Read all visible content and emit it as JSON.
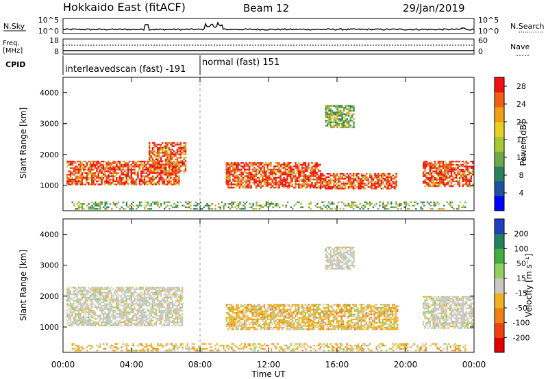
{
  "header": {
    "station": "Hokkaido East (fitACF)",
    "beam": "Beam 12",
    "date": "29/Jan/2019"
  },
  "noise_panel": {
    "left_label": "N.Sky",
    "right_label": "N.Search",
    "ticks": [
      "10^5",
      "10^0"
    ]
  },
  "freq_panel": {
    "left_label_line1": "Freq.",
    "left_label_line2": "[MHz]",
    "left_ticks": [
      "18",
      "8"
    ],
    "right_label": "Nave",
    "right_ticks": [
      "60",
      "0"
    ]
  },
  "cpid_panel": {
    "label": "CPID",
    "segments": [
      {
        "name": "interleavedscan (fast) -191",
        "start_hour": 0,
        "end_hour": 8
      },
      {
        "name": "normal (fast) 151",
        "start_hour": 8,
        "end_hour": 24
      }
    ]
  },
  "time_axis": {
    "label": "Time UT",
    "ticks": [
      "00:00",
      "04:00",
      "08:00",
      "12:00",
      "16:00",
      "20:00",
      "00:00"
    ],
    "range_hours": [
      0,
      24
    ]
  },
  "chart_data": [
    {
      "type": "heatmap",
      "name": "power",
      "ylabel": "Slant Range [km]",
      "yticks": [
        "1000",
        "2000",
        "3000",
        "4000"
      ],
      "ylim": [
        180,
        4500
      ],
      "colorbar": {
        "label": "Power [dB]",
        "ticks": [
          "4",
          "8",
          "12",
          "16",
          "20",
          "24",
          "28"
        ],
        "range": [
          0,
          30
        ],
        "colors": [
          "#0000ff",
          "#1e50a0",
          "#2a8060",
          "#6aaa4a",
          "#a8c832",
          "#e8d020",
          "#f0a010",
          "#f06010",
          "#f01010"
        ]
      },
      "scatter_regions": [
        {
          "t": [
            0.2,
            6.8
          ],
          "r": [
            1050,
            1800
          ],
          "value": "high"
        },
        {
          "t": [
            5.0,
            7.2
          ],
          "r": [
            1400,
            2400
          ],
          "value": "high"
        },
        {
          "t": [
            9.5,
            15.0
          ],
          "r": [
            900,
            1750
          ],
          "value": "high"
        },
        {
          "t": [
            15.0,
            19.5
          ],
          "r": [
            900,
            1400
          ],
          "value": "high"
        },
        {
          "t": [
            21.0,
            23.9
          ],
          "r": [
            950,
            1800
          ],
          "value": "high"
        },
        {
          "t": [
            15.3,
            17.0
          ],
          "r": [
            2900,
            3600
          ],
          "value": "mid"
        },
        {
          "t": [
            0.5,
            23.5
          ],
          "r": [
            220,
            480
          ],
          "value": "mid"
        }
      ]
    },
    {
      "type": "heatmap",
      "name": "velocity",
      "ylabel": "Slant Range [km]",
      "yticks": [
        "1000",
        "2000",
        "3000",
        "4000"
      ],
      "ylim": [
        180,
        4500
      ],
      "colorbar": {
        "label": "Velocity [m s⁻¹]",
        "ticks": [
          "200",
          "100",
          "50",
          "15",
          "-15",
          "-50",
          "-100",
          "-200"
        ],
        "range": [
          -250,
          250
        ],
        "colors": [
          "#2040c0",
          "#208060",
          "#40b040",
          "#90d060",
          "#c8c8c0",
          "#f0b020",
          "#f08010",
          "#f04010",
          "#e00000"
        ]
      },
      "scatter_regions": [
        {
          "t": [
            0.2,
            7.0
          ],
          "r": [
            1050,
            2300
          ],
          "value": "gray"
        },
        {
          "t": [
            9.5,
            19.5
          ],
          "r": [
            900,
            1750
          ],
          "value": "orange"
        },
        {
          "t": [
            21.0,
            23.9
          ],
          "r": [
            950,
            2000
          ],
          "value": "gray"
        },
        {
          "t": [
            15.3,
            17.0
          ],
          "r": [
            2900,
            3600
          ],
          "value": "gray"
        },
        {
          "t": [
            0.5,
            23.5
          ],
          "r": [
            220,
            480
          ],
          "value": "orange"
        }
      ]
    }
  ]
}
